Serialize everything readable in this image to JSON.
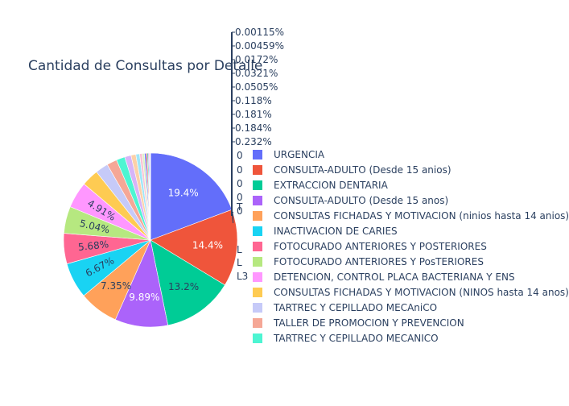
{
  "chart_data": {
    "type": "pie",
    "title": "Cantidad de Consultas por Detalle",
    "series": [
      {
        "name": "URGENCIA",
        "value": 19.4,
        "label": "19.4%",
        "color": "#636efa"
      },
      {
        "name": "CONSULTA-ADULTO (Desde 15 anios)",
        "value": 14.4,
        "label": "14.4%",
        "color": "#ef553b"
      },
      {
        "name": "EXTRACCION DENTARIA",
        "value": 13.2,
        "label": "13.2%",
        "color": "#00cc96"
      },
      {
        "name": "CONSULTA-ADULTO (Desde 15 anos)",
        "value": 9.89,
        "label": "9.89%",
        "color": "#ab63fa"
      },
      {
        "name": "CONSULTAS FICHADAS Y MOTIVACION (ninios hasta 14 anios)",
        "value": 7.35,
        "label": "7.35%",
        "color": "#ffa15a"
      },
      {
        "name": "INACTIVACION DE CARIES",
        "value": 6.67,
        "label": "6.67%",
        "color": "#19d3f3"
      },
      {
        "name": "FOTOCURADO ANTERIORES Y POSTERIORES",
        "value": 5.68,
        "label": "5.68%",
        "color": "#ff6692"
      },
      {
        "name": "FOTOCURADO ANTERIORES Y PosTERIORES",
        "value": 5.04,
        "label": "5.04%",
        "color": "#b6e880"
      },
      {
        "name": "DETENCION, CONTROL PLACA BACTERIANA Y ENS",
        "value": 4.91,
        "label": "4.91%",
        "color": "#ff97ff"
      },
      {
        "name": "CONSULTAS FICHADAS Y MOTIVACION (NINOS hasta 14 anos)",
        "value": 3.2,
        "label": "",
        "color": "#fecb52"
      },
      {
        "name": "TARTREC Y CEPILLADO MECAniCO",
        "value": 2.4,
        "label": "",
        "color": "#c6caf8"
      },
      {
        "name": "TALLER DE PROMOCION Y PREVENCION",
        "value": 1.9,
        "label": "",
        "color": "#f5a796"
      },
      {
        "name": "TARTREC Y CEPILLADO MECANICO",
        "value": 1.6,
        "label": "",
        "color": "#4df5d2"
      },
      {
        "name": "",
        "value": 1.2,
        "label": "",
        "color": "#d6b4f8"
      },
      {
        "name": "",
        "value": 0.9,
        "label": "",
        "color": "#fcd0a8"
      },
      {
        "name": "",
        "value": 0.7,
        "label": "",
        "color": "#9fe6f8"
      },
      {
        "name": "",
        "value": 0.5,
        "label": "",
        "color": "#f9c3d4"
      },
      {
        "name": "",
        "value": 0.4,
        "label": "",
        "color": "#daf2c4"
      },
      {
        "name": "",
        "value": 0.3,
        "label": "",
        "color": "#636efa"
      },
      {
        "name": "",
        "value": 0.232,
        "label": "",
        "color": "#ef553b"
      },
      {
        "name": "",
        "value": 0.184,
        "label": "",
        "color": "#00cc96"
      },
      {
        "name": "",
        "value": 0.181,
        "label": "",
        "color": "#ab63fa"
      },
      {
        "name": "",
        "value": 0.118,
        "label": "",
        "color": "#ffa15a"
      },
      {
        "name": "",
        "value": 0.0505,
        "label": "",
        "color": "#19d3f3"
      },
      {
        "name": "",
        "value": 0.0321,
        "label": "",
        "color": "#ff6692"
      },
      {
        "name": "",
        "value": 0.0172,
        "label": "",
        "color": "#b6e880"
      },
      {
        "name": "",
        "value": 0.00459,
        "label": "",
        "color": "#ff97ff"
      },
      {
        "name": "",
        "value": 0.00115,
        "label": "",
        "color": "#fecb52"
      }
    ],
    "outside_labels": [
      "0.00115%",
      "0.00459%",
      "0.0172%",
      "0.0321%",
      "0.0505%",
      "0.118%",
      "0.181%",
      "0.184%",
      "0.232%"
    ],
    "outside_label_fragments": [
      "0",
      "0",
      "0",
      "0",
      "0",
      "T",
      "L",
      "L",
      "L3"
    ],
    "legend_visible_count": 13,
    "legend_position": "right"
  }
}
